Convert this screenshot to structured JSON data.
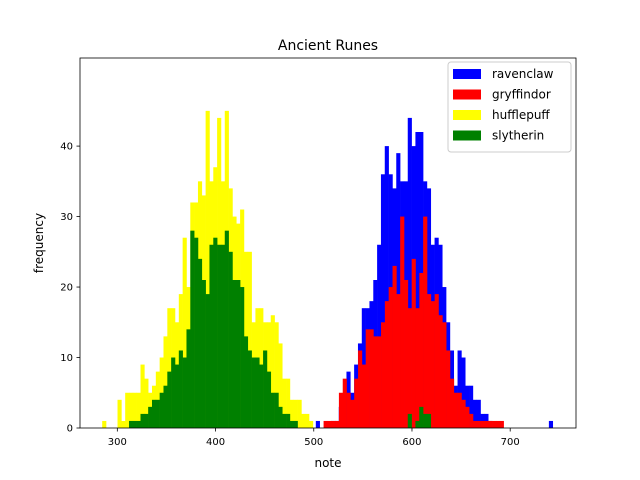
{
  "chart_data": {
    "type": "histogram",
    "title": "Ancient Runes",
    "xlabel": "note",
    "ylabel": "frequency",
    "xlim": [
      262,
      767
    ],
    "ylim": [
      0,
      52.5
    ],
    "xticks": [
      300,
      400,
      500,
      600,
      700
    ],
    "yticks": [
      0,
      10,
      20,
      30,
      40
    ],
    "grid": false,
    "legend": "top-right",
    "bin_width": 3.9,
    "series": [
      {
        "name": "ravenclaw",
        "color": "#0000ff",
        "bins": [
          {
            "x": 502.1,
            "y": 1
          },
          {
            "x": 506.0,
            "y": 0
          },
          {
            "x": 509.9,
            "y": 0
          },
          {
            "x": 513.8,
            "y": 0
          },
          {
            "x": 517.7,
            "y": 1
          },
          {
            "x": 521.6,
            "y": 1
          },
          {
            "x": 525.5,
            "y": 3
          },
          {
            "x": 529.4,
            "y": 4
          },
          {
            "x": 533.3,
            "y": 8
          },
          {
            "x": 537.2,
            "y": 5
          },
          {
            "x": 541.1,
            "y": 9
          },
          {
            "x": 545.0,
            "y": 12
          },
          {
            "x": 548.9,
            "y": 17
          },
          {
            "x": 552.8,
            "y": 17
          },
          {
            "x": 556.7,
            "y": 18
          },
          {
            "x": 560.6,
            "y": 21
          },
          {
            "x": 564.5,
            "y": 26
          },
          {
            "x": 568.4,
            "y": 36
          },
          {
            "x": 572.3,
            "y": 40
          },
          {
            "x": 576.2,
            "y": 36
          },
          {
            "x": 580.1,
            "y": 34
          },
          {
            "x": 584.0,
            "y": 39
          },
          {
            "x": 587.9,
            "y": 35
          },
          {
            "x": 591.8,
            "y": 35
          },
          {
            "x": 595.7,
            "y": 44
          },
          {
            "x": 599.6,
            "y": 40
          },
          {
            "x": 603.5,
            "y": 42
          },
          {
            "x": 607.4,
            "y": 42
          },
          {
            "x": 611.3,
            "y": 35
          },
          {
            "x": 615.2,
            "y": 34
          },
          {
            "x": 619.1,
            "y": 26
          },
          {
            "x": 623.0,
            "y": 27
          },
          {
            "x": 626.9,
            "y": 26
          },
          {
            "x": 630.8,
            "y": 20
          },
          {
            "x": 634.7,
            "y": 15
          },
          {
            "x": 638.6,
            "y": 11
          },
          {
            "x": 642.5,
            "y": 6
          },
          {
            "x": 646.4,
            "y": 11
          },
          {
            "x": 650.3,
            "y": 10
          },
          {
            "x": 654.2,
            "y": 6
          },
          {
            "x": 658.1,
            "y": 6
          },
          {
            "x": 662.0,
            "y": 4
          },
          {
            "x": 665.9,
            "y": 4
          },
          {
            "x": 669.8,
            "y": 2
          },
          {
            "x": 673.7,
            "y": 2
          },
          {
            "x": 677.6,
            "y": 1
          },
          {
            "x": 739.4,
            "y": 1
          }
        ]
      },
      {
        "name": "gryffindor",
        "color": "#ff0000",
        "bins": [
          {
            "x": 510.0,
            "y": 1
          },
          {
            "x": 513.9,
            "y": 1
          },
          {
            "x": 517.8,
            "y": 1
          },
          {
            "x": 521.7,
            "y": 1
          },
          {
            "x": 525.6,
            "y": 5
          },
          {
            "x": 529.5,
            "y": 7
          },
          {
            "x": 533.4,
            "y": 5
          },
          {
            "x": 537.3,
            "y": 4
          },
          {
            "x": 541.2,
            "y": 7
          },
          {
            "x": 545.1,
            "y": 11
          },
          {
            "x": 549.0,
            "y": 9
          },
          {
            "x": 552.9,
            "y": 14
          },
          {
            "x": 556.8,
            "y": 14
          },
          {
            "x": 560.7,
            "y": 13
          },
          {
            "x": 564.6,
            "y": 13
          },
          {
            "x": 568.5,
            "y": 15
          },
          {
            "x": 572.4,
            "y": 18
          },
          {
            "x": 576.3,
            "y": 20
          },
          {
            "x": 580.2,
            "y": 23
          },
          {
            "x": 584.1,
            "y": 19
          },
          {
            "x": 588.0,
            "y": 30
          },
          {
            "x": 591.9,
            "y": 21
          },
          {
            "x": 595.8,
            "y": 17
          },
          {
            "x": 599.7,
            "y": 24
          },
          {
            "x": 603.6,
            "y": 17
          },
          {
            "x": 607.5,
            "y": 22
          },
          {
            "x": 611.4,
            "y": 30
          },
          {
            "x": 615.3,
            "y": 19
          },
          {
            "x": 619.2,
            "y": 18
          },
          {
            "x": 623.1,
            "y": 19
          },
          {
            "x": 627.0,
            "y": 16
          },
          {
            "x": 630.9,
            "y": 15
          },
          {
            "x": 634.8,
            "y": 11
          },
          {
            "x": 638.7,
            "y": 7
          },
          {
            "x": 642.6,
            "y": 5
          },
          {
            "x": 646.5,
            "y": 5
          },
          {
            "x": 650.4,
            "y": 4
          },
          {
            "x": 654.3,
            "y": 3
          },
          {
            "x": 658.2,
            "y": 2
          },
          {
            "x": 662.1,
            "y": 1
          },
          {
            "x": 666.0,
            "y": 1
          },
          {
            "x": 669.9,
            "y": 1
          },
          {
            "x": 673.8,
            "y": 1
          },
          {
            "x": 677.7,
            "y": 1
          },
          {
            "x": 681.6,
            "y": 1
          },
          {
            "x": 685.5,
            "y": 1
          },
          {
            "x": 689.4,
            "y": 1
          }
        ]
      },
      {
        "name": "hufflepuff",
        "color": "#ffff00",
        "bins": [
          {
            "x": 284.6,
            "y": 1
          },
          {
            "x": 288.5,
            "y": 0
          },
          {
            "x": 292.4,
            "y": 0
          },
          {
            "x": 296.3,
            "y": 0
          },
          {
            "x": 300.2,
            "y": 4
          },
          {
            "x": 304.1,
            "y": 1
          },
          {
            "x": 308.0,
            "y": 5
          },
          {
            "x": 311.9,
            "y": 5
          },
          {
            "x": 315.8,
            "y": 5
          },
          {
            "x": 319.7,
            "y": 5
          },
          {
            "x": 323.6,
            "y": 9
          },
          {
            "x": 327.5,
            "y": 7
          },
          {
            "x": 331.4,
            "y": 5
          },
          {
            "x": 335.3,
            "y": 6
          },
          {
            "x": 339.2,
            "y": 8
          },
          {
            "x": 343.1,
            "y": 10
          },
          {
            "x": 347.0,
            "y": 13
          },
          {
            "x": 350.9,
            "y": 17
          },
          {
            "x": 354.8,
            "y": 17
          },
          {
            "x": 358.7,
            "y": 15
          },
          {
            "x": 362.6,
            "y": 19
          },
          {
            "x": 366.5,
            "y": 27
          },
          {
            "x": 370.4,
            "y": 20
          },
          {
            "x": 374.3,
            "y": 32
          },
          {
            "x": 378.2,
            "y": 32
          },
          {
            "x": 382.1,
            "y": 35
          },
          {
            "x": 386.0,
            "y": 33
          },
          {
            "x": 389.9,
            "y": 45
          },
          {
            "x": 393.8,
            "y": 35
          },
          {
            "x": 397.7,
            "y": 37
          },
          {
            "x": 401.6,
            "y": 44
          },
          {
            "x": 405.5,
            "y": 35
          },
          {
            "x": 409.4,
            "y": 45
          },
          {
            "x": 413.3,
            "y": 34
          },
          {
            "x": 417.2,
            "y": 30
          },
          {
            "x": 421.1,
            "y": 29
          },
          {
            "x": 425.0,
            "y": 31
          },
          {
            "x": 428.9,
            "y": 25
          },
          {
            "x": 432.8,
            "y": 25
          },
          {
            "x": 436.7,
            "y": 15
          },
          {
            "x": 440.6,
            "y": 17
          },
          {
            "x": 444.5,
            "y": 17
          },
          {
            "x": 448.4,
            "y": 15
          },
          {
            "x": 452.3,
            "y": 15
          },
          {
            "x": 456.2,
            "y": 16
          },
          {
            "x": 460.1,
            "y": 15
          },
          {
            "x": 464.0,
            "y": 12
          },
          {
            "x": 467.9,
            "y": 7
          },
          {
            "x": 471.8,
            "y": 7
          },
          {
            "x": 475.7,
            "y": 4
          },
          {
            "x": 479.6,
            "y": 4
          },
          {
            "x": 483.5,
            "y": 4
          },
          {
            "x": 487.4,
            "y": 2
          },
          {
            "x": 491.3,
            "y": 2
          },
          {
            "x": 495.2,
            "y": 1
          }
        ]
      },
      {
        "name": "slytherin",
        "color": "#008000",
        "bins": [
          {
            "x": 311.9,
            "y": 1
          },
          {
            "x": 315.8,
            "y": 1
          },
          {
            "x": 319.7,
            "y": 1
          },
          {
            "x": 323.6,
            "y": 2
          },
          {
            "x": 327.5,
            "y": 2
          },
          {
            "x": 331.4,
            "y": 3
          },
          {
            "x": 335.3,
            "y": 4
          },
          {
            "x": 339.2,
            "y": 4
          },
          {
            "x": 343.1,
            "y": 5
          },
          {
            "x": 347.0,
            "y": 6
          },
          {
            "x": 350.9,
            "y": 8
          },
          {
            "x": 354.8,
            "y": 10
          },
          {
            "x": 358.7,
            "y": 9
          },
          {
            "x": 362.6,
            "y": 11
          },
          {
            "x": 366.5,
            "y": 10
          },
          {
            "x": 370.4,
            "y": 14
          },
          {
            "x": 374.3,
            "y": 28
          },
          {
            "x": 378.2,
            "y": 27
          },
          {
            "x": 382.1,
            "y": 24
          },
          {
            "x": 386.0,
            "y": 21
          },
          {
            "x": 389.9,
            "y": 19
          },
          {
            "x": 393.8,
            "y": 26
          },
          {
            "x": 397.7,
            "y": 27
          },
          {
            "x": 401.6,
            "y": 26
          },
          {
            "x": 405.5,
            "y": 26
          },
          {
            "x": 409.4,
            "y": 28
          },
          {
            "x": 413.3,
            "y": 25
          },
          {
            "x": 417.2,
            "y": 21
          },
          {
            "x": 421.1,
            "y": 21
          },
          {
            "x": 425.0,
            "y": 20
          },
          {
            "x": 428.9,
            "y": 13
          },
          {
            "x": 432.8,
            "y": 11
          },
          {
            "x": 436.7,
            "y": 10
          },
          {
            "x": 440.6,
            "y": 10
          },
          {
            "x": 444.5,
            "y": 9
          },
          {
            "x": 448.4,
            "y": 11
          },
          {
            "x": 452.3,
            "y": 8
          },
          {
            "x": 456.2,
            "y": 5
          },
          {
            "x": 460.1,
            "y": 5
          },
          {
            "x": 464.0,
            "y": 3
          },
          {
            "x": 467.9,
            "y": 2
          },
          {
            "x": 471.8,
            "y": 2
          },
          {
            "x": 475.7,
            "y": 1
          },
          {
            "x": 479.6,
            "y": 1
          },
          {
            "x": 595.7,
            "y": 2
          },
          {
            "x": 603.5,
            "y": 1
          },
          {
            "x": 607.4,
            "y": 3
          },
          {
            "x": 611.3,
            "y": 2
          },
          {
            "x": 615.2,
            "y": 2
          }
        ]
      }
    ]
  }
}
